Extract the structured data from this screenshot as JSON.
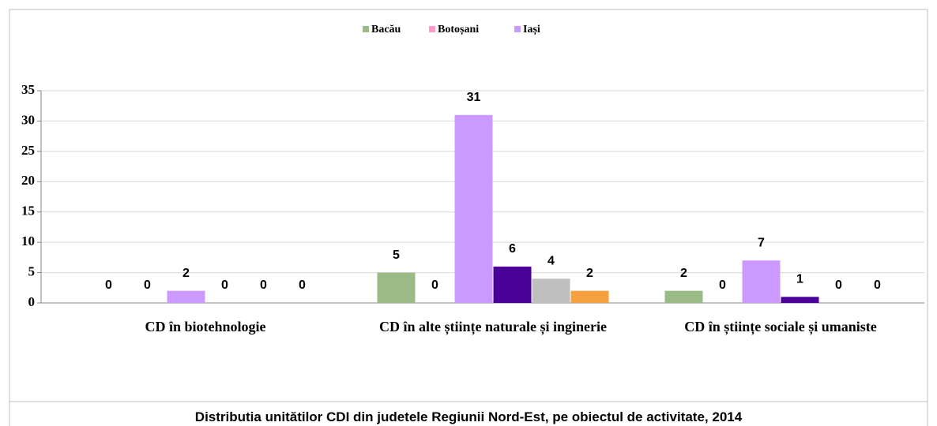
{
  "chart_data": {
    "type": "bar",
    "title": "Distributia unitătilor CDI din judetele Regiunii Nord-Est, pe obiectul de activitate, 2014",
    "categories": [
      "CD în biotehnologie",
      "CD în alte științe naturale și inginerie",
      "CD în științe sociale și umaniste"
    ],
    "series": [
      {
        "name": "Bacău",
        "color": "#9bbb86",
        "values": [
          0,
          5,
          2
        ]
      },
      {
        "name": "Botoșani",
        "color": "#ff99cc",
        "values": [
          0,
          0,
          0
        ]
      },
      {
        "name": "Iași",
        "color": "#cc99ff",
        "values": [
          2,
          31,
          7
        ]
      },
      {
        "color": "#4b0099",
        "values": [
          0,
          6,
          1
        ]
      },
      {
        "color": "#bfbfbf",
        "values": [
          0,
          4,
          0
        ]
      },
      {
        "color": "#f7a040",
        "values": [
          0,
          2,
          0
        ]
      }
    ],
    "ylim": [
      0,
      35
    ],
    "yticks": [
      0,
      5,
      10,
      15,
      20,
      25,
      30,
      35
    ],
    "grid": true,
    "legend": "top"
  }
}
